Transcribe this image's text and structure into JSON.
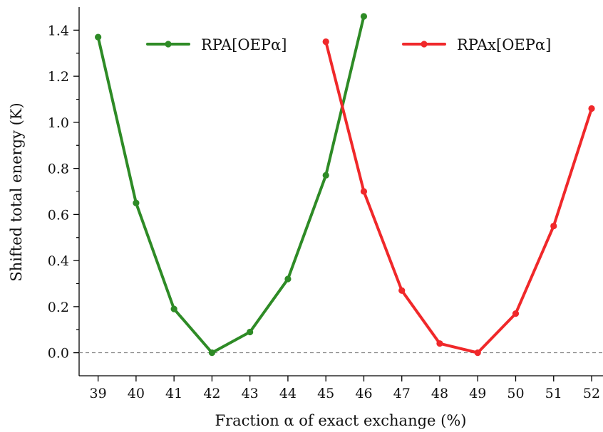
{
  "chart_data": {
    "type": "line",
    "xlabel": "Fraction α of exact exchange (%)",
    "ylabel": "Shifted total energy (K)",
    "xlim": [
      38.5,
      52.3
    ],
    "ylim": [
      -0.1,
      1.5
    ],
    "x_ticks": [
      39,
      40,
      41,
      42,
      43,
      44,
      45,
      46,
      47,
      48,
      49,
      50,
      51,
      52
    ],
    "x_tick_labels": [
      "39",
      "40",
      "41",
      "42",
      "43",
      "44",
      "45",
      "46",
      "47",
      "48",
      "49",
      "50",
      "51",
      "52"
    ],
    "y_ticks": [
      0.0,
      0.2,
      0.4,
      0.6,
      0.8,
      1.0,
      1.2,
      1.4
    ],
    "y_tick_labels": [
      "0.0",
      "0.2",
      "0.4",
      "0.6",
      "0.8",
      "1.0",
      "1.2",
      "1.4"
    ],
    "reference_line": {
      "y": 0.0,
      "style": "dashed",
      "color": "#777777"
    },
    "grid": false,
    "legend_position": "top",
    "series": [
      {
        "name": "RPA[OEPα]",
        "color": "#2e8b26",
        "marker": "circle",
        "x": [
          39,
          40,
          41,
          42,
          43,
          44,
          45,
          46
        ],
        "y": [
          1.37,
          0.65,
          0.19,
          0.0,
          0.09,
          0.32,
          0.77,
          1.46
        ]
      },
      {
        "name": "RPAx[OEPα]",
        "color": "#f0282a",
        "marker": "circle",
        "x": [
          45,
          46,
          47,
          48,
          49,
          50,
          51,
          52
        ],
        "y": [
          1.35,
          0.7,
          0.27,
          0.04,
          0.0,
          0.17,
          0.55,
          1.06
        ]
      }
    ]
  }
}
